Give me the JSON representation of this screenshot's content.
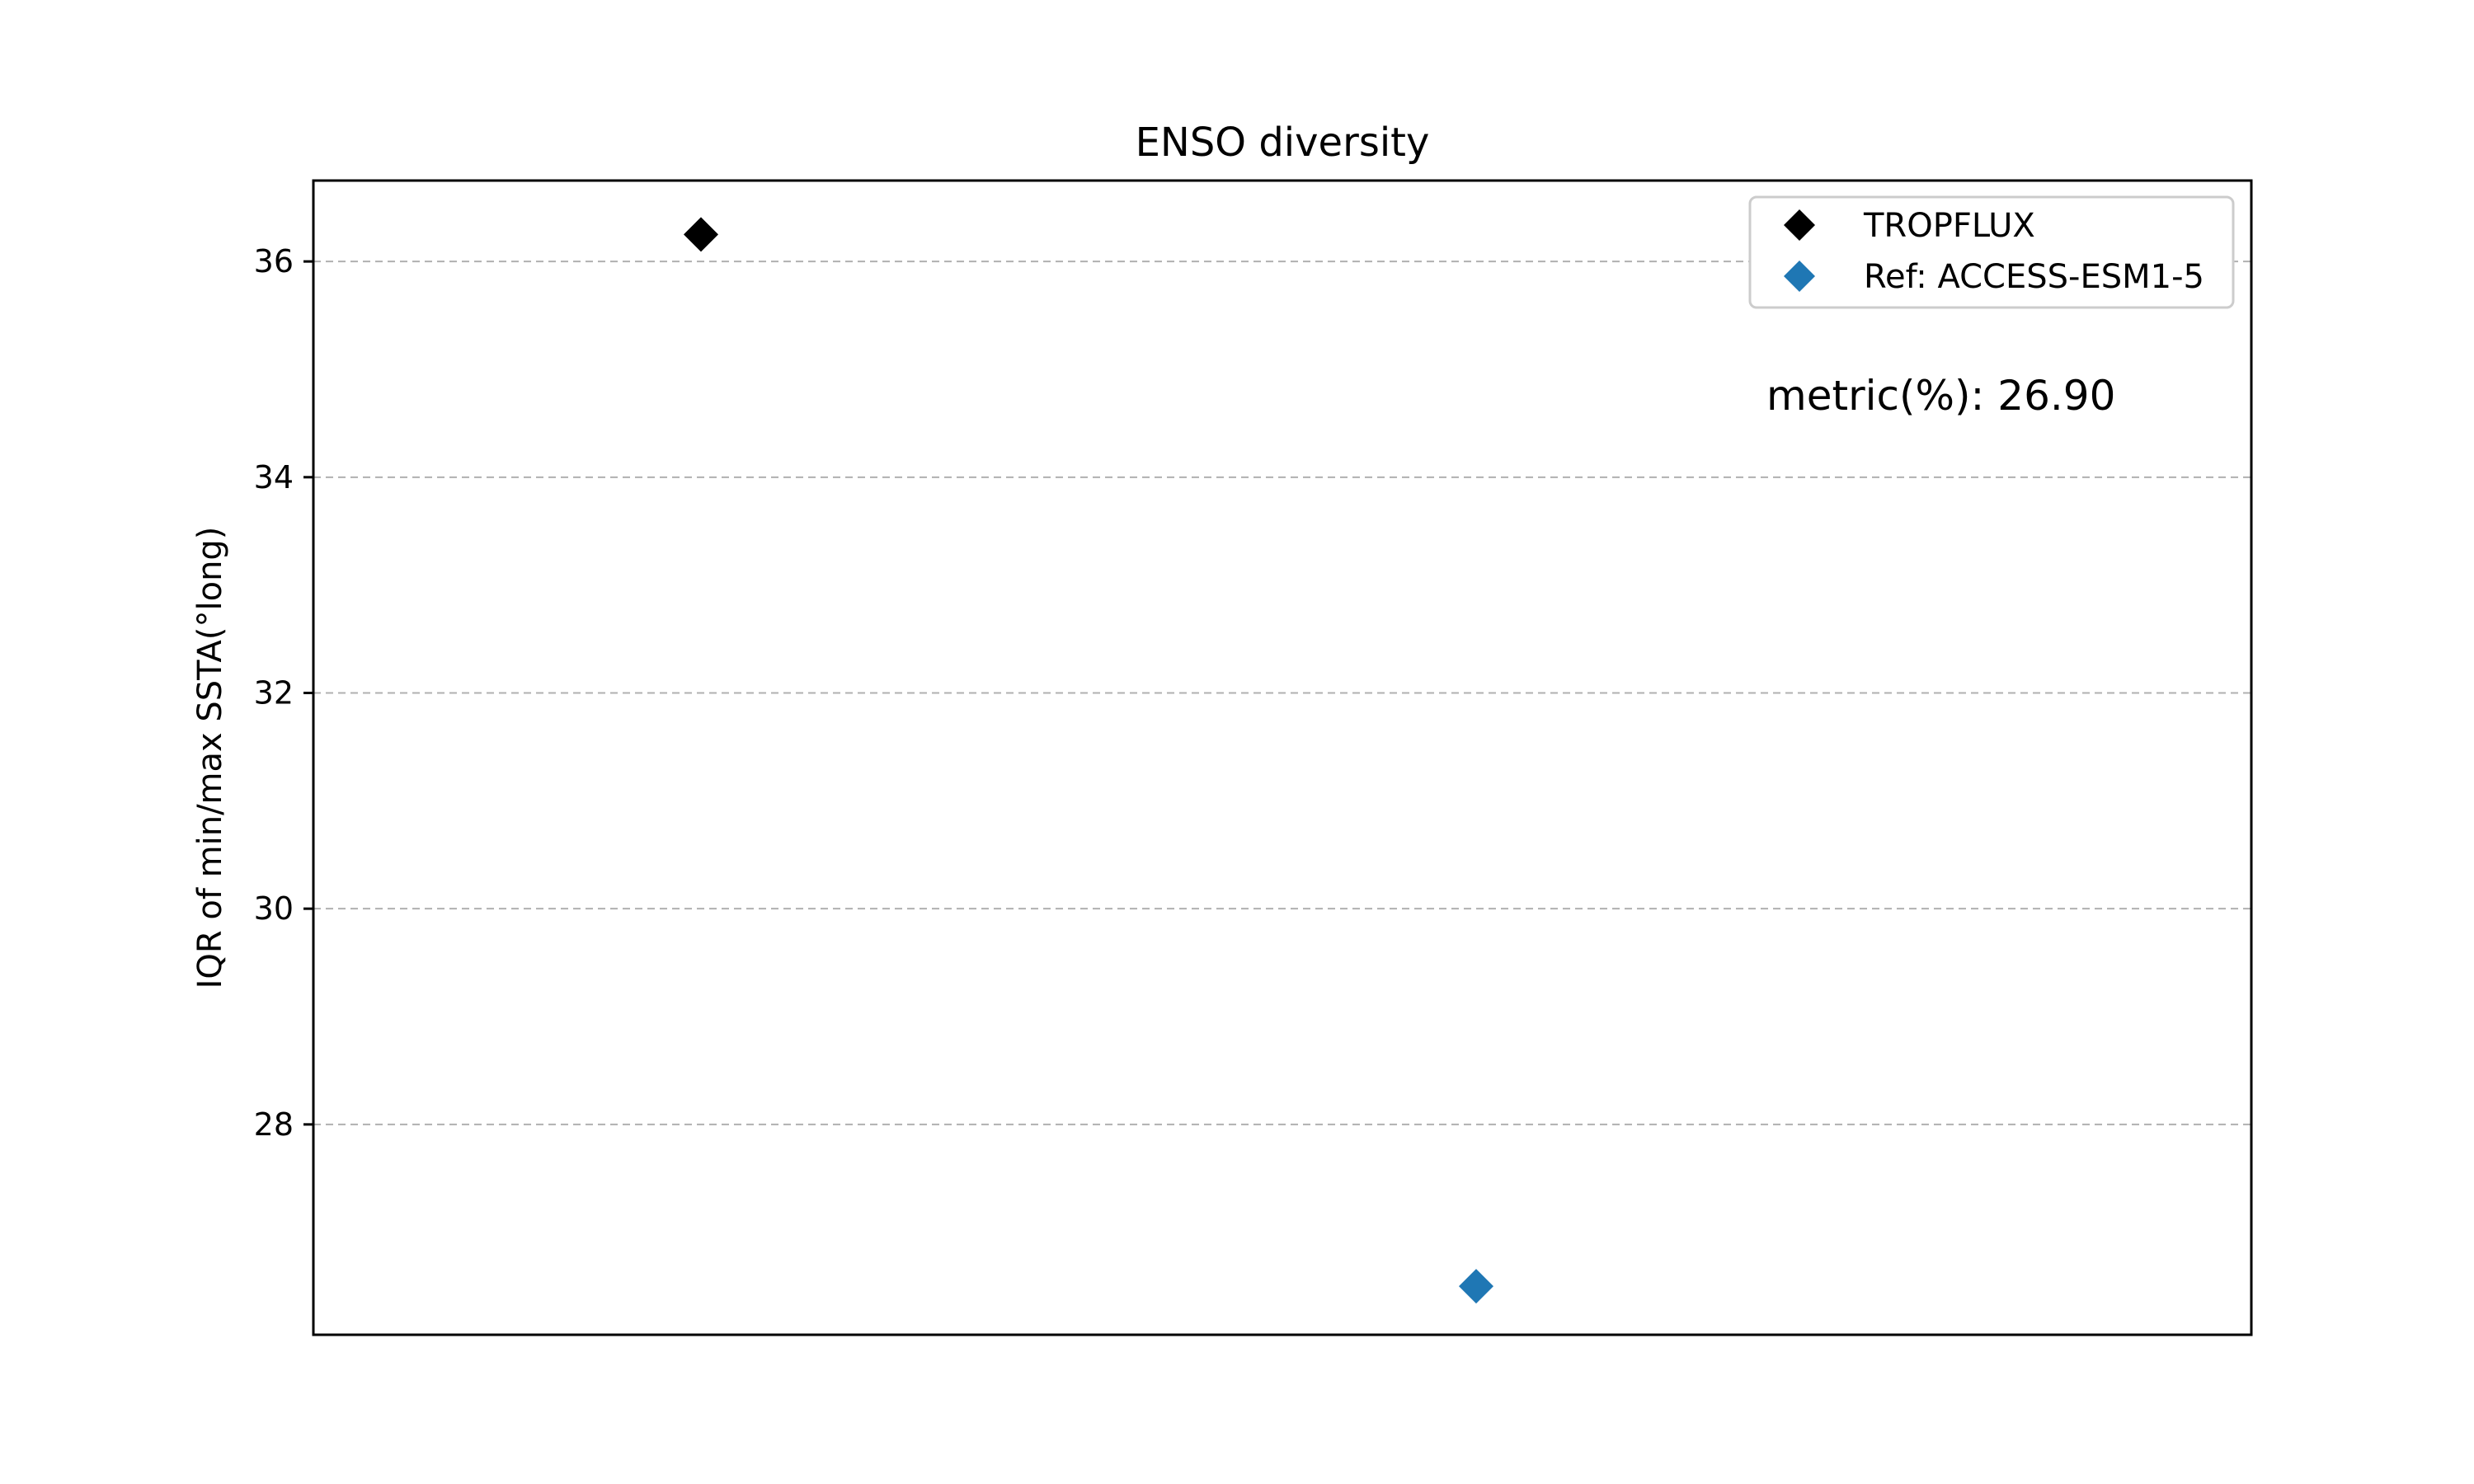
{
  "chart_data": {
    "type": "scatter",
    "title": "ENSO diversity",
    "xlabel": "",
    "ylabel": "IQR of min/max SSTA(°long)",
    "ylim": [
      26.05,
      36.75
    ],
    "xlim": [
      0,
      1
    ],
    "yticks": [
      28,
      30,
      32,
      34,
      36
    ],
    "grid": "horizontal dashed",
    "legend_position": "top-right",
    "series": [
      {
        "name": "TROPFLUX",
        "marker": "diamond",
        "color": "#000000",
        "x": 0.2,
        "y": 36.25
      },
      {
        "name": "Ref: ACCESS-ESM1-5",
        "marker": "diamond",
        "color": "#1f77b4",
        "x": 0.6,
        "y": 26.5
      }
    ],
    "annotation": "metric(%): 26.90"
  }
}
